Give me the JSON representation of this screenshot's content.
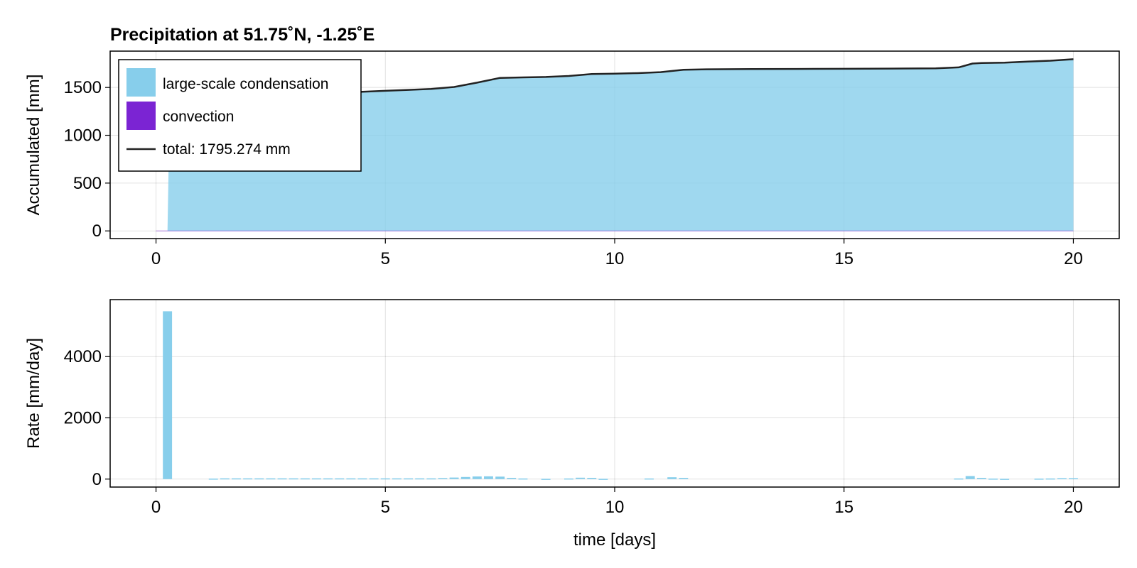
{
  "chart_data": [
    {
      "type": "area",
      "title": "Precipitation at 51.75˚N, -1.25˚E",
      "xlabel": "",
      "ylabel": "Accumulated [mm]",
      "xlim": [
        -1,
        21
      ],
      "ylim": [
        -80,
        1880
      ],
      "xticks": [
        0,
        5,
        10,
        15,
        20
      ],
      "yticks": [
        0,
        500,
        1000,
        1500
      ],
      "grid": true,
      "legend_placement": "top-left",
      "legend": [
        {
          "label": "large-scale condensation",
          "kind": "patch",
          "color": "#87ceeb"
        },
        {
          "label": "convection",
          "kind": "patch",
          "color": "#7b24d3"
        },
        {
          "label": "total: 1795.274 mm",
          "kind": "line",
          "color": "#222222"
        }
      ],
      "series": [
        {
          "name": "large-scale condensation",
          "color": "#87ceeb",
          "x": [
            0,
            0.25,
            0.3,
            1.0,
            2.0,
            3.0,
            4.0,
            4.5,
            5.0,
            5.5,
            6.0,
            6.5,
            7.0,
            7.5,
            8.0,
            8.5,
            9.0,
            9.5,
            10.0,
            10.5,
            11.0,
            11.5,
            12.0,
            13.0,
            14.0,
            15.0,
            16.0,
            17.0,
            17.5,
            17.8,
            18.0,
            18.5,
            19.0,
            19.5,
            20.0
          ],
          "y": [
            0,
            0,
            1370,
            1380,
            1395,
            1410,
            1440,
            1455,
            1465,
            1475,
            1485,
            1505,
            1550,
            1600,
            1605,
            1610,
            1620,
            1640,
            1645,
            1650,
            1660,
            1685,
            1690,
            1692,
            1694,
            1695,
            1697,
            1700,
            1710,
            1750,
            1755,
            1760,
            1770,
            1780,
            1795
          ]
        },
        {
          "name": "convection",
          "color": "#7b24d3",
          "x": [
            0,
            20
          ],
          "y": [
            0,
            0
          ]
        },
        {
          "name": "total: 1795.274 mm",
          "color": "#222222",
          "x": [
            0.3,
            1.0,
            2.0,
            3.0,
            4.0,
            4.5,
            5.0,
            5.5,
            6.0,
            6.5,
            7.0,
            7.5,
            8.0,
            8.5,
            9.0,
            9.5,
            10.0,
            10.5,
            11.0,
            11.5,
            12.0,
            13.0,
            14.0,
            15.0,
            16.0,
            17.0,
            17.5,
            17.8,
            18.0,
            18.5,
            19.0,
            19.5,
            20.0
          ],
          "y": [
            1370,
            1380,
            1395,
            1410,
            1440,
            1455,
            1465,
            1475,
            1485,
            1505,
            1550,
            1600,
            1605,
            1610,
            1620,
            1640,
            1645,
            1650,
            1660,
            1685,
            1690,
            1692,
            1694,
            1695,
            1697,
            1700,
            1710,
            1750,
            1755,
            1760,
            1770,
            1780,
            1795
          ]
        }
      ]
    },
    {
      "type": "bar",
      "title": "",
      "xlabel": "time [days]",
      "ylabel": "Rate [mm/day]",
      "xlim": [
        -1,
        21
      ],
      "ylim": [
        -260,
        5860
      ],
      "xticks": [
        0,
        5,
        10,
        15,
        20
      ],
      "yticks": [
        0,
        2000,
        4000
      ],
      "grid": true,
      "bar_width": 0.2,
      "series": [
        {
          "name": "large-scale condensation",
          "color": "#87ceeb",
          "x": [
            0.25,
            1.25,
            1.5,
            1.75,
            2.0,
            2.25,
            2.5,
            2.75,
            3.0,
            3.25,
            3.5,
            3.75,
            4.0,
            4.25,
            4.5,
            4.75,
            5.0,
            5.25,
            5.5,
            5.75,
            6.0,
            6.25,
            6.5,
            6.75,
            7.0,
            7.25,
            7.5,
            7.75,
            8.0,
            8.5,
            9.0,
            9.25,
            9.5,
            9.75,
            10.75,
            11.25,
            11.5,
            17.5,
            17.75,
            18.0,
            18.25,
            18.5,
            19.25,
            19.5,
            19.75,
            20.0
          ],
          "y": [
            5480,
            15,
            25,
            25,
            25,
            25,
            25,
            25,
            25,
            25,
            25,
            25,
            25,
            25,
            25,
            25,
            25,
            25,
            25,
            25,
            25,
            35,
            50,
            70,
            85,
            90,
            80,
            40,
            20,
            10,
            20,
            45,
            40,
            10,
            20,
            60,
            40,
            20,
            100,
            40,
            15,
            10,
            15,
            20,
            30,
            30
          ]
        }
      ]
    }
  ]
}
